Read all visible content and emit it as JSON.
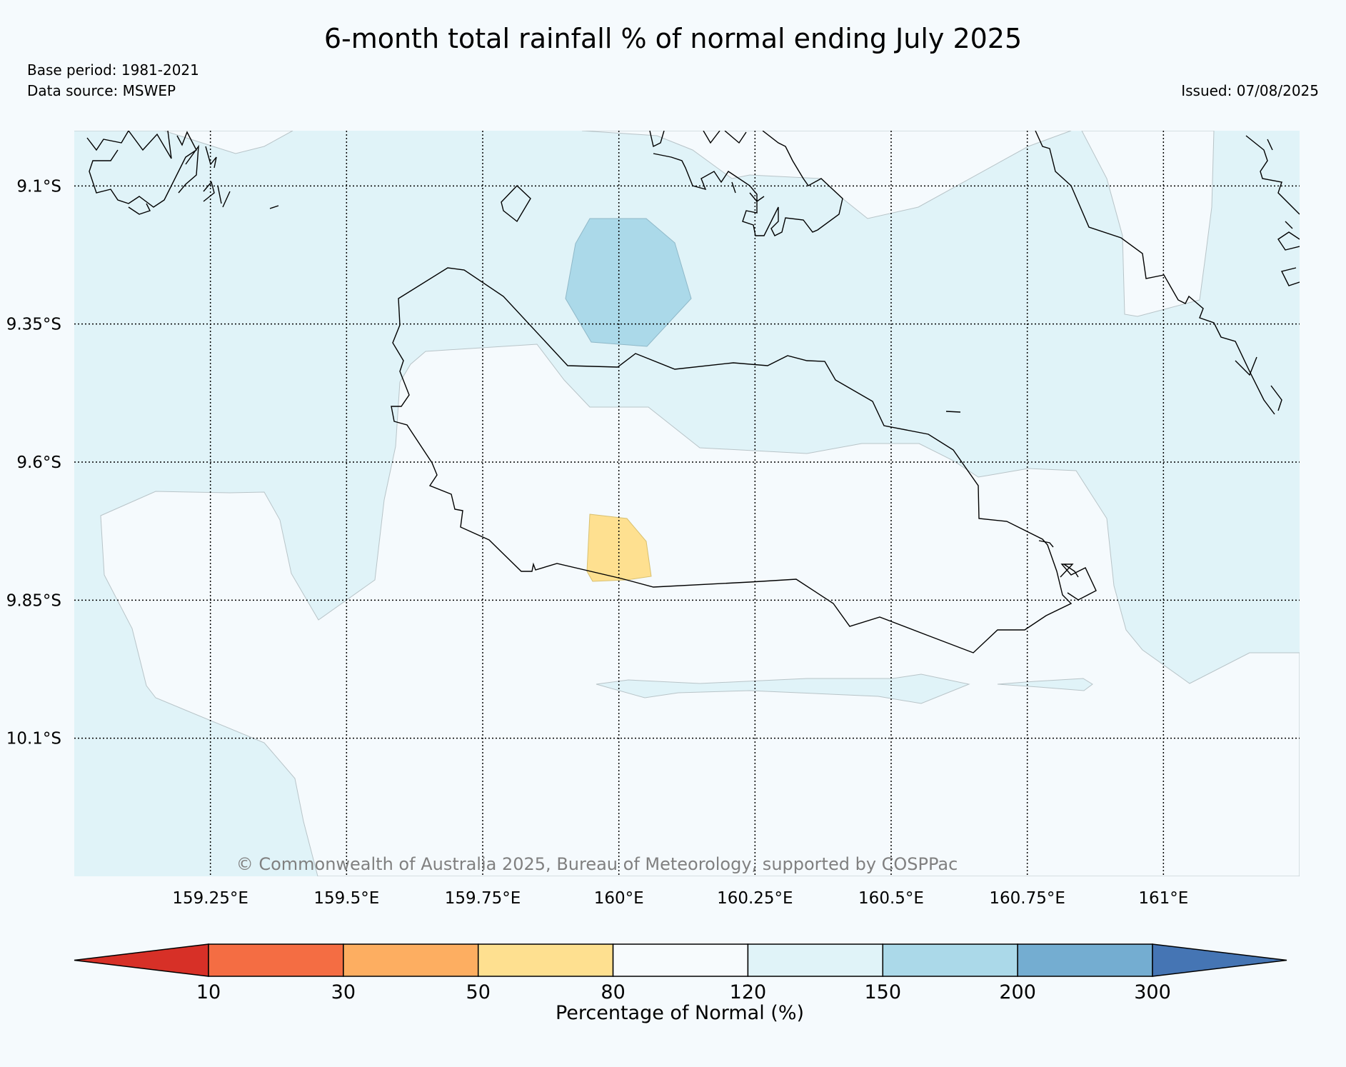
{
  "title": "6-month total rainfall % of normal ending July 2025",
  "base_period": "Base period: 1981-2021",
  "data_source": "Data source: MSWEP",
  "issued": "Issued: 07/08/2025",
  "copyright": "© Commonwealth of Australia 2025, Bureau of Meteorology, supported by COSPPac",
  "map": {
    "lon_range": [
      159.0,
      161.25
    ],
    "lat_range": [
      -10.35,
      -9.0
    ],
    "lon_ticks": [
      {
        "value": 159.25,
        "label": "159.25°E"
      },
      {
        "value": 159.5,
        "label": "159.5°E"
      },
      {
        "value": 159.75,
        "label": "159.75°E"
      },
      {
        "value": 160.0,
        "label": "160°E"
      },
      {
        "value": 160.25,
        "label": "160.25°E"
      },
      {
        "value": 160.5,
        "label": "160.5°E"
      },
      {
        "value": 160.75,
        "label": "160.75°E"
      },
      {
        "value": 161.0,
        "label": "161°E"
      }
    ],
    "lat_ticks": [
      {
        "value": -9.1,
        "label": "9.1°S"
      },
      {
        "value": -9.35,
        "label": "9.35°S"
      },
      {
        "value": -9.6,
        "label": "9.6°S"
      },
      {
        "value": -9.85,
        "label": "9.85°S"
      },
      {
        "value": -10.1,
        "label": "10.1°S"
      }
    ],
    "gridlines": true
  },
  "colorbar": {
    "label": "Percentage of Normal (%)",
    "boundaries": [
      "10",
      "30",
      "50",
      "80",
      "120",
      "150",
      "200",
      "300"
    ],
    "colors": [
      "#d73027",
      "#f46d43",
      "#fdae61",
      "#fee090",
      "#f7fbfd",
      "#e0f3f8",
      "#abd9e9",
      "#74add1",
      "#4575b4"
    ]
  }
}
